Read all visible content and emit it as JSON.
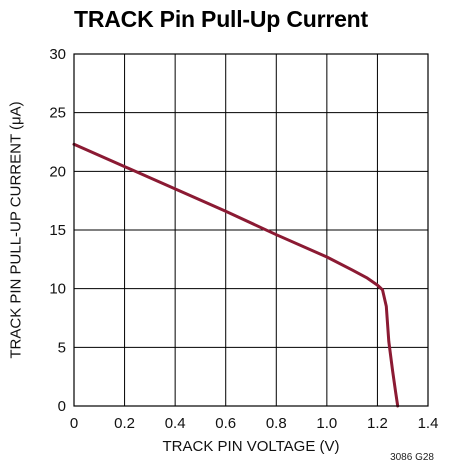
{
  "chart_data": {
    "type": "line",
    "title": "TRACK Pin Pull-Up Current",
    "xlabel": "TRACK PIN VOLTAGE (V)",
    "ylabel": "TRACK PIN PULL-UP CURRENT (μA)",
    "xlim": [
      0,
      1.4
    ],
    "ylim": [
      0,
      30
    ],
    "x_ticks": [
      "0",
      "0.2",
      "0.4",
      "0.6",
      "0.8",
      "1.0",
      "1.2",
      "1.4"
    ],
    "y_ticks": [
      "0",
      "5",
      "10",
      "15",
      "20",
      "25",
      "30"
    ],
    "grid": true,
    "series": [
      {
        "color": "#8b1a33",
        "points": [
          [
            0.0,
            22.3
          ],
          [
            0.2,
            20.4
          ],
          [
            0.4,
            18.5
          ],
          [
            0.6,
            16.6
          ],
          [
            0.8,
            14.6
          ],
          [
            1.0,
            12.7
          ],
          [
            1.1,
            11.6
          ],
          [
            1.16,
            10.9
          ],
          [
            1.2,
            10.3
          ],
          [
            1.22,
            9.9
          ],
          [
            1.235,
            8.5
          ],
          [
            1.245,
            5.5
          ],
          [
            1.26,
            3.0
          ],
          [
            1.272,
            1.2
          ],
          [
            1.28,
            0.0
          ]
        ]
      }
    ]
  },
  "figure_code": "3086 G28"
}
